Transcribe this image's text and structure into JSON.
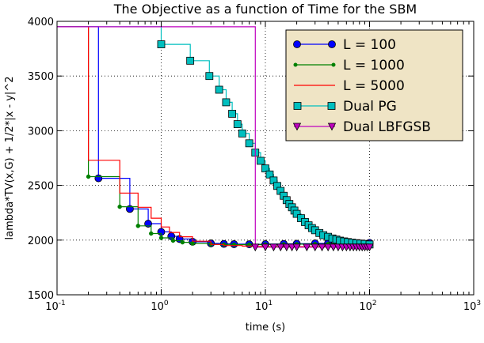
{
  "chart_data": {
    "type": "line",
    "title": "The Objective as a function of Time for the SBM",
    "xlabel": "time (s)",
    "ylabel": "lambda*TV(x,G) + 1/2*|x - y|^2",
    "x_scale": "log",
    "xlim": [
      0.1,
      1000
    ],
    "ylim": [
      1500,
      4000
    ],
    "x_ticks": [
      {
        "value": 0.1,
        "base": "10",
        "exp": "-1"
      },
      {
        "value": 1,
        "base": "10",
        "exp": "0"
      },
      {
        "value": 10,
        "base": "10",
        "exp": "1"
      },
      {
        "value": 100,
        "base": "10",
        "exp": "2"
      },
      {
        "value": 1000,
        "base": "10",
        "exp": "3"
      }
    ],
    "y_ticks": [
      {
        "value": 1500,
        "label": "1500"
      },
      {
        "value": 2000,
        "label": "2000"
      },
      {
        "value": 2500,
        "label": "2500"
      },
      {
        "value": 3000,
        "label": "3000"
      },
      {
        "value": 3500,
        "label": "3500"
      },
      {
        "value": 4000,
        "label": "4000"
      }
    ],
    "grid": true,
    "legend_position": "top-right",
    "series": [
      {
        "name": "L = 100",
        "color": "#0000ff",
        "marker": "circle",
        "step": true,
        "x": [
          0.25,
          0.5,
          0.75,
          1.0,
          1.25,
          1.5,
          2,
          3,
          4,
          5,
          7,
          10,
          15,
          20,
          30,
          40,
          50,
          70,
          100
        ],
        "y": [
          2565,
          2285,
          2150,
          2075,
          2035,
          2010,
          1985,
          1970,
          1965,
          1963,
          1962,
          1963,
          1965,
          1967,
          1970,
          1972,
          1973,
          1975,
          1975
        ],
        "start_y": 3950,
        "start_x": 0.25
      },
      {
        "name": "L = 1000",
        "color": "#008000",
        "marker": "dot",
        "step": true,
        "x": [
          0.2,
          0.4,
          0.6,
          0.8,
          1.0,
          1.3,
          1.6,
          2,
          3,
          4,
          5,
          7,
          10,
          15,
          20,
          30,
          40,
          50,
          60,
          70,
          80,
          90,
          100
        ],
        "y": [
          2580,
          2305,
          2130,
          2060,
          2020,
          1995,
          1980,
          1970,
          1962,
          1960,
          1959,
          1959,
          1960,
          1962,
          1963,
          1964,
          1966,
          1967,
          1968,
          1968,
          1969,
          1969,
          1970
        ],
        "start_y": 3950,
        "start_x": 0.2
      },
      {
        "name": "L = 5000",
        "color": "#ff0000",
        "marker": "none",
        "step": true,
        "x": [
          0.2,
          0.4,
          0.6,
          0.8,
          1.0,
          1.2,
          1.5,
          2,
          3,
          4,
          6,
          8,
          10,
          20,
          50,
          100
        ],
        "y": [
          2730,
          2430,
          2300,
          2200,
          2120,
          2070,
          2030,
          1990,
          1960,
          1950,
          1945,
          1942,
          1940,
          1940,
          1940,
          1940
        ],
        "start_y": 3950,
        "start_x": 0.2
      },
      {
        "name": "Dual PG",
        "color": "#00bfbf",
        "marker": "square",
        "step": true,
        "x": [
          1.0,
          1.9,
          2.9,
          3.6,
          4.2,
          4.8,
          5.4,
          6.0,
          7.0,
          8.0,
          9.0,
          10,
          11,
          12,
          13,
          14,
          15,
          16,
          17,
          18,
          19,
          20,
          22,
          24,
          26,
          28,
          30,
          33,
          36,
          40,
          44,
          48,
          52,
          57,
          62,
          68,
          75,
          82,
          90,
          100
        ],
        "y": [
          3790,
          3640,
          3500,
          3375,
          3260,
          3155,
          3060,
          2975,
          2885,
          2800,
          2725,
          2655,
          2600,
          2545,
          2495,
          2450,
          2405,
          2365,
          2330,
          2300,
          2270,
          2240,
          2200,
          2165,
          2135,
          2110,
          2090,
          2065,
          2045,
          2030,
          2015,
          2005,
          1995,
          1988,
          1982,
          1977,
          1972,
          1968,
          1965,
          1960
        ],
        "start_y": 3950,
        "start_x": 1.0
      },
      {
        "name": "Dual LBFGSB",
        "color": "#bf00bf",
        "marker": "triangle-down",
        "step": true,
        "x": [
          8,
          10,
          12,
          14,
          16,
          18,
          20,
          25,
          30,
          35,
          40,
          45,
          50,
          55,
          60,
          65,
          70,
          75,
          80,
          85,
          90,
          95,
          100
        ],
        "y": [
          1935,
          1935,
          1935,
          1935,
          1935,
          1935,
          1935,
          1935,
          1935,
          1935,
          1935,
          1935,
          1935,
          1935,
          1935,
          1935,
          1935,
          1935,
          1935,
          1935,
          1935,
          1935,
          1935
        ],
        "start_y": 3950,
        "start_x": 8
      }
    ]
  }
}
